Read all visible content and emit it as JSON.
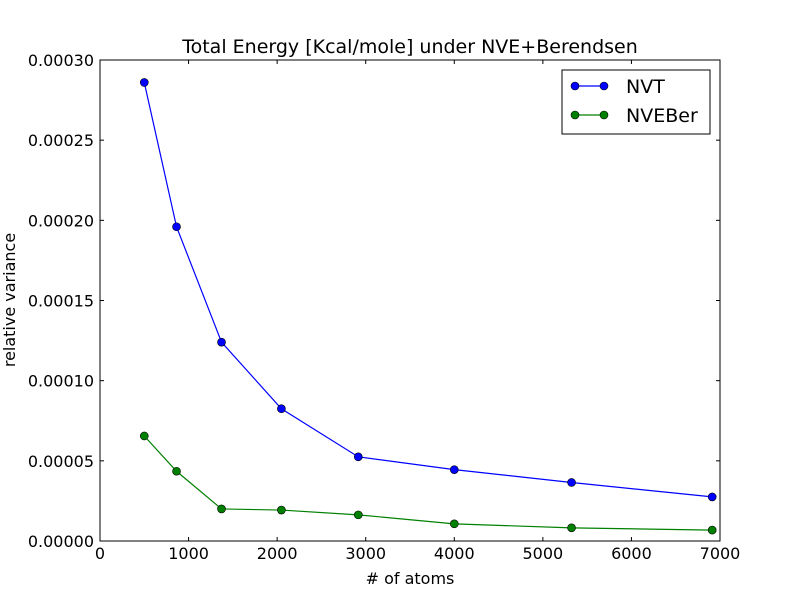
{
  "chart_data": {
    "type": "line",
    "title": "Total Energy [Kcal/mole] under NVE+Berendsen",
    "xlabel": "# of atoms",
    "ylabel": "relative variance",
    "xlim": [
      0,
      7000
    ],
    "ylim": [
      0,
      0.0003
    ],
    "xticks": [
      0,
      1000,
      2000,
      3000,
      4000,
      5000,
      6000,
      7000
    ],
    "xtick_labels": [
      "0",
      "1000",
      "2000",
      "3000",
      "4000",
      "5000",
      "6000",
      "7000"
    ],
    "yticks": [
      0,
      5e-05,
      0.0001,
      0.00015,
      0.0002,
      0.00025,
      0.0003
    ],
    "ytick_labels": [
      "0.00000",
      "0.00005",
      "0.00010",
      "0.00015",
      "0.00020",
      "0.00025",
      "0.00030"
    ],
    "grid": false,
    "legend_position": "top-right",
    "x": [
      500,
      864,
      1372,
      2048,
      2916,
      4000,
      5324,
      6912
    ],
    "series": [
      {
        "name": "NVT",
        "color": "#0000ff",
        "marker": "circle",
        "values": [
          0.000286,
          0.000196,
          0.000124,
          8.25e-05,
          5.25e-05,
          4.45e-05,
          3.65e-05,
          2.75e-05
        ]
      },
      {
        "name": "NVEBer",
        "color": "#008000",
        "marker": "circle",
        "values": [
          6.55e-05,
          4.35e-05,
          2e-05,
          1.93e-05,
          1.63e-05,
          1.07e-05,
          8.2e-06,
          6.8e-06
        ]
      }
    ]
  }
}
